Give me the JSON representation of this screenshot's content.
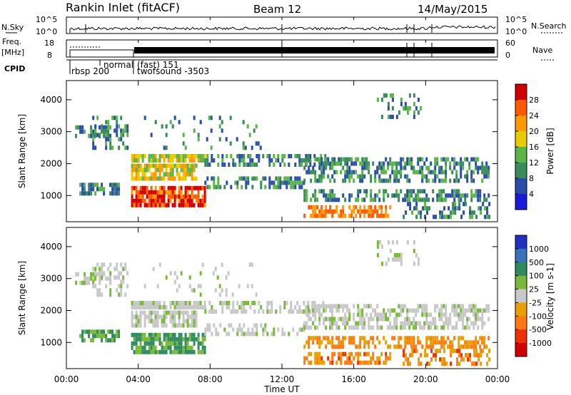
{
  "header": {
    "title": "Rankin Inlet (fitACF)",
    "beam": "Beam 12",
    "date": "14/May/2015"
  },
  "panels": {
    "nsky_label": "N.Sky",
    "nsky_left_ticks": [
      "10^5",
      "10^0"
    ],
    "nsearch_label": "N.Search",
    "nsearch_right_ticks": [
      "10^5",
      "10^0"
    ],
    "freq_label": "Freq.",
    "freq_unit": "[MHz]",
    "freq_ticks": [
      "18",
      "8"
    ],
    "nave_label": "Nave",
    "nave_ticks": [
      "60",
      "0"
    ],
    "cpid_label": "CPID",
    "cpid_entries": [
      "rbsp 200",
      "normal",
      "(fast) 151",
      "twofsound -3503"
    ]
  },
  "chart_data": [
    {
      "type": "heatmap",
      "name": "power",
      "ylabel": "Slant Range [km]",
      "yticks": [
        1000,
        2000,
        3000,
        4000
      ],
      "ylim": [
        180,
        4600
      ],
      "colorbar_label": "Power [dB]",
      "colorbar_ticks": [
        "28",
        "24",
        "20",
        "16",
        "12",
        "8",
        "4"
      ],
      "colorbar_colors": [
        "#d00000",
        "#ff5a00",
        "#ff9a00",
        "#e6cc00",
        "#5ab44a",
        "#3a8a5e",
        "#2a4ea8",
        "#1a1adc"
      ]
    },
    {
      "type": "heatmap",
      "name": "velocity",
      "ylabel": "Slant Range [km]",
      "yticks": [
        1000,
        2000,
        3000,
        4000
      ],
      "ylim": [
        180,
        4600
      ],
      "colorbar_label": "Velocity [m s-1]",
      "colorbar_ticks": [
        "1000",
        "500",
        "100",
        "25",
        "-25",
        "-100",
        "-500",
        "-1000"
      ],
      "colorbar_colors": [
        "#2030c0",
        "#3a72b8",
        "#2e8a60",
        "#7ab83a",
        "#c8c8c8",
        "#e8a000",
        "#ff7a10",
        "#f03000",
        "#d00000"
      ]
    }
  ],
  "xaxis": {
    "ticks": [
      "00:00",
      "04:00",
      "08:00",
      "12:00",
      "16:00",
      "20:00",
      "00:00"
    ],
    "label": "Time UT"
  }
}
